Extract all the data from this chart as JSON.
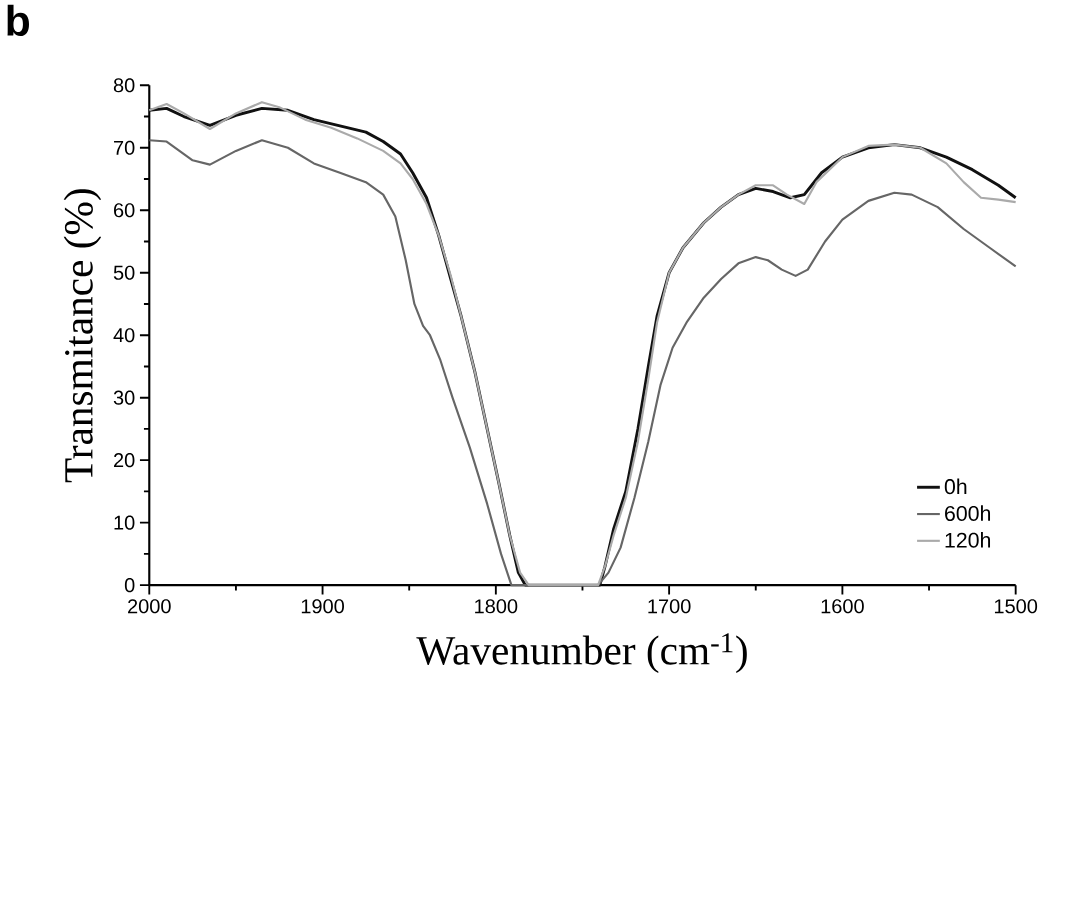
{
  "chart_data": {
    "type": "line",
    "xlabel": "Wavenumber (cm$^{-1}$)",
    "ylabel": "Transmitance (%)",
    "annotations": [
      "**b**"
    ],
    "xlim": [
      2000,
      1500
    ],
    "xticks": [
      2000,
      1900,
      1800,
      1700,
      1600,
      1500
    ],
    "ylim": [
      0,
      80
    ],
    "yticks": [
      0,
      10,
      20,
      30,
      40,
      50,
      60,
      70,
      80
    ],
    "legend": "bottom right",
    "grid": false,
    "marker": "none",
    "line_style": "solid",
    "series": [
      {
        "name": "0h",
        "color": "#111111",
        "x": [
          2000,
          1990,
          1980,
          1965,
          1950,
          1935,
          1920,
          1905,
          1890,
          1875,
          1865,
          1855,
          1848,
          1840,
          1833,
          1826,
          1820,
          1812,
          1805,
          1798,
          1792,
          1787,
          1783,
          1740,
          1737,
          1732,
          1725,
          1718,
          1712,
          1707,
          1700,
          1692,
          1680,
          1670,
          1660,
          1650,
          1640,
          1630,
          1622,
          1612,
          1600,
          1585,
          1570,
          1555,
          1540,
          1525,
          1510,
          1500
        ],
        "values": [
          76,
          76.3,
          75,
          73.6,
          75.2,
          76.3,
          76,
          74.5,
          73.5,
          72.5,
          71,
          69,
          66,
          62,
          56,
          49,
          43,
          34,
          25,
          16,
          8,
          2,
          0,
          0,
          3,
          9,
          15,
          25,
          35,
          43,
          50,
          54,
          58,
          60.5,
          62.5,
          63.5,
          63,
          62,
          62.5,
          66,
          68.5,
          70,
          70.5,
          70,
          68.5,
          66.5,
          64,
          62
        ]
      },
      {
        "name": "600h",
        "color": "#666666",
        "x": [
          2000,
          1990,
          1975,
          1965,
          1950,
          1935,
          1920,
          1905,
          1890,
          1875,
          1865,
          1858,
          1852,
          1847,
          1842,
          1838,
          1832,
          1825,
          1815,
          1805,
          1797,
          1791,
          1741,
          1735,
          1728,
          1720,
          1712,
          1705,
          1698,
          1690,
          1680,
          1670,
          1660,
          1650,
          1643,
          1635,
          1627,
          1620,
          1610,
          1600,
          1585,
          1570,
          1560,
          1545,
          1530,
          1515,
          1500
        ],
        "values": [
          71.2,
          71,
          68,
          67.3,
          69.5,
          71.2,
          70,
          67.5,
          66,
          64.5,
          62.5,
          59,
          52,
          45,
          41.5,
          40,
          36,
          30,
          22,
          13,
          5,
          0,
          0,
          2,
          6,
          14,
          23,
          32,
          38,
          42,
          46,
          49,
          51.5,
          52.5,
          52,
          50.5,
          49.5,
          50.5,
          55,
          58.5,
          61.5,
          62.8,
          62.5,
          60.5,
          57,
          54,
          51
        ]
      },
      {
        "name": "120h",
        "color": "#aaaaaa",
        "x": [
          2000,
          1990,
          1980,
          1965,
          1950,
          1935,
          1925,
          1910,
          1895,
          1880,
          1865,
          1855,
          1848,
          1840,
          1833,
          1826,
          1820,
          1812,
          1805,
          1798,
          1792,
          1786,
          1781,
          1741,
          1737,
          1732,
          1725,
          1718,
          1712,
          1707,
          1700,
          1692,
          1680,
          1670,
          1660,
          1650,
          1640,
          1632,
          1622,
          1615,
          1600,
          1585,
          1570,
          1555,
          1540,
          1530,
          1520,
          1510,
          1500
        ],
        "values": [
          76,
          77,
          75.5,
          73,
          75.5,
          77.3,
          76.5,
          74.5,
          73.2,
          71.5,
          69.5,
          67.5,
          65,
          61,
          56,
          49.5,
          43,
          34,
          25,
          16,
          8,
          2,
          0,
          0,
          3,
          8,
          14,
          23,
          33,
          42,
          50,
          54,
          58,
          60.5,
          62.5,
          64,
          64,
          62.5,
          61,
          64.5,
          68.5,
          70.3,
          70.5,
          70,
          67.5,
          64.5,
          62,
          61.7,
          61.3
        ]
      }
    ]
  }
}
